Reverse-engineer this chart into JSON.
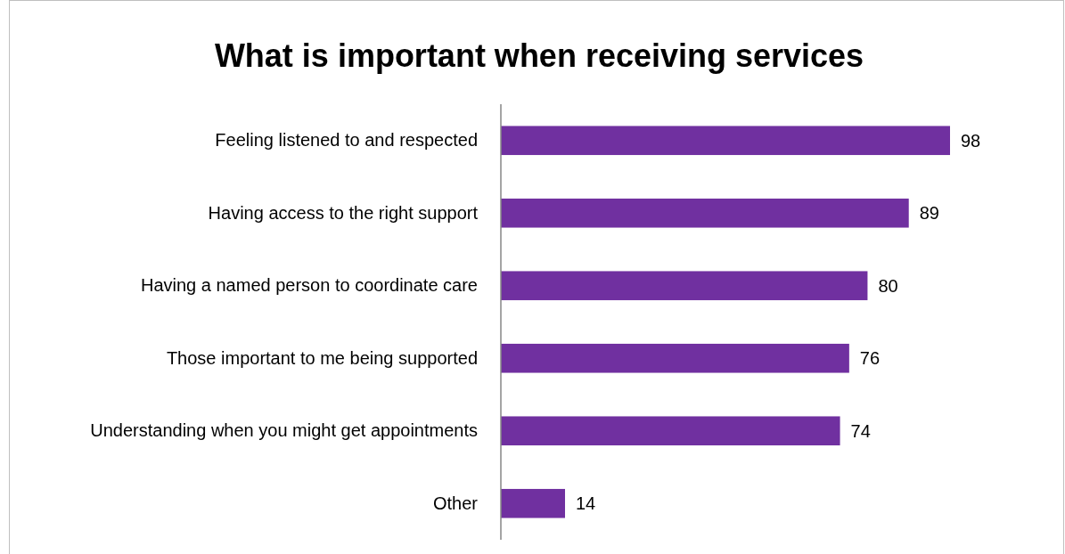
{
  "chart_data": {
    "type": "bar",
    "orientation": "horizontal",
    "title": "What is important when receiving services",
    "categories": [
      "Feeling listened to and respected",
      "Having access to the right support",
      "Having a named person to coordinate care",
      "Those important to me being supported",
      "Understanding when you might get appointments",
      "Other"
    ],
    "values": [
      98,
      89,
      80,
      76,
      74,
      14
    ],
    "color": "#7030a0",
    "data_labels": true
  }
}
